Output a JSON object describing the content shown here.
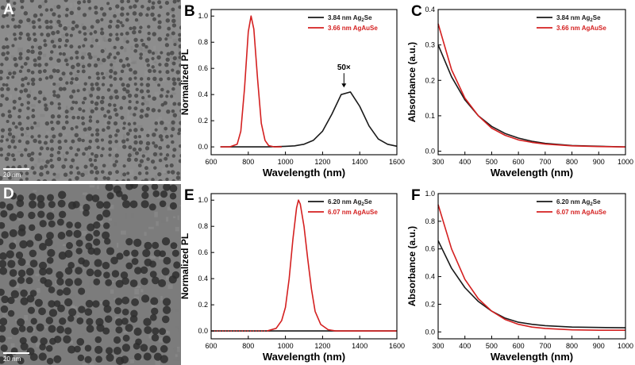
{
  "tem_panels": [
    {
      "letter": "A",
      "scale_label": "20 nm"
    },
    {
      "letter": "D",
      "scale_label": "20 nm"
    }
  ],
  "chart_data": [
    {
      "panel": "B",
      "type": "line",
      "xlabel": "Wavelength (nm)",
      "ylabel": "Normalized PL",
      "xlim": [
        600,
        1600
      ],
      "ylim": [
        -0.06,
        1.05
      ],
      "xticks": [
        600,
        800,
        1000,
        1200,
        1400,
        1600
      ],
      "yticks": [
        0.0,
        0.2,
        0.4,
        0.6,
        0.8,
        1.0
      ],
      "legend": [
        {
          "size": "3.84 nm",
          "material": "Ag",
          "sub": "2",
          "tail": "Se",
          "color": "#1a1a1a"
        },
        {
          "size": "3.66 nm",
          "material": "AgAuSe",
          "sub": "",
          "tail": "",
          "color": "#d42020"
        }
      ],
      "annotation": {
        "text": "50×",
        "x": 1315,
        "y": 0.43
      },
      "series": [
        {
          "color": "#1a1a1a",
          "dotted": false,
          "x": [
            650,
            700,
            750,
            800,
            850,
            900,
            950,
            1000,
            1050,
            1100,
            1150,
            1200,
            1250,
            1300,
            1350,
            1400,
            1450,
            1500,
            1550,
            1600
          ],
          "y": [
            0.0,
            0.0,
            0.0,
            0.0,
            0.0,
            0.0,
            0.002,
            0.004,
            0.008,
            0.02,
            0.05,
            0.12,
            0.25,
            0.4,
            0.42,
            0.31,
            0.16,
            0.06,
            0.02,
            0.005
          ]
        },
        {
          "color": "#d42020",
          "dotted": false,
          "x": [
            650,
            700,
            740,
            760,
            780,
            800,
            815,
            830,
            850,
            870,
            890,
            910,
            940,
            980
          ],
          "y": [
            0.0,
            0.0,
            0.02,
            0.12,
            0.45,
            0.88,
            1.0,
            0.9,
            0.52,
            0.18,
            0.05,
            0.01,
            0.0,
            0.0
          ]
        }
      ]
    },
    {
      "panel": "C",
      "type": "line",
      "xlabel": "Wavelength (nm)",
      "ylabel": "Absorbance (a.u.)",
      "xlim": [
        300,
        1000
      ],
      "ylim": [
        -0.01,
        0.4
      ],
      "xticks": [
        300,
        400,
        500,
        600,
        700,
        800,
        900,
        1000
      ],
      "yticks": [
        0.0,
        0.1,
        0.2,
        0.3,
        0.4
      ],
      "legend": [
        {
          "size": "3.84 nm",
          "material": "Ag",
          "sub": "2",
          "tail": "Se",
          "color": "#1a1a1a"
        },
        {
          "size": "3.66 nm",
          "material": "AgAuSe",
          "sub": "",
          "tail": "",
          "color": "#d42020"
        }
      ],
      "series": [
        {
          "color": "#1a1a1a",
          "dotted": false,
          "x": [
            300,
            350,
            400,
            450,
            500,
            550,
            600,
            650,
            700,
            800,
            900,
            1000
          ],
          "y": [
            0.3,
            0.21,
            0.145,
            0.1,
            0.07,
            0.05,
            0.037,
            0.028,
            0.022,
            0.016,
            0.014,
            0.012
          ]
        },
        {
          "color": "#d42020",
          "dotted": false,
          "x": [
            300,
            350,
            400,
            450,
            500,
            550,
            600,
            650,
            700,
            800,
            900,
            1000
          ],
          "y": [
            0.36,
            0.23,
            0.15,
            0.1,
            0.065,
            0.045,
            0.032,
            0.025,
            0.02,
            0.015,
            0.013,
            0.012
          ]
        }
      ]
    },
    {
      "panel": "E",
      "type": "line",
      "xlabel": "Wavelength (nm)",
      "ylabel": "Normalized PL",
      "xlim": [
        600,
        1600
      ],
      "ylim": [
        -0.06,
        1.05
      ],
      "xticks": [
        600,
        800,
        1000,
        1200,
        1400,
        1600
      ],
      "yticks": [
        0.0,
        0.2,
        0.4,
        0.6,
        0.8,
        1.0
      ],
      "legend": [
        {
          "size": "6.20 nm",
          "material": "Ag",
          "sub": "2",
          "tail": "Se",
          "color": "#1a1a1a"
        },
        {
          "size": "6.07 nm",
          "material": "AgAuSe",
          "sub": "",
          "tail": "",
          "color": "#d42020"
        }
      ],
      "series": [
        {
          "color": "#1a1a1a",
          "dotted": false,
          "x": [
            600,
            1600
          ],
          "y": [
            0.0,
            0.0
          ]
        },
        {
          "color": "#d42020",
          "dotted": true,
          "x": [
            600,
            700,
            800,
            900
          ],
          "y": [
            0.0,
            0.0,
            0.0,
            0.0
          ]
        },
        {
          "color": "#d42020",
          "dotted": false,
          "x": [
            900,
            950,
            980,
            1000,
            1020,
            1040,
            1060,
            1070,
            1080,
            1100,
            1120,
            1140,
            1160,
            1190,
            1230,
            1270,
            1600
          ],
          "y": [
            0.0,
            0.02,
            0.08,
            0.18,
            0.4,
            0.7,
            0.94,
            1.0,
            0.97,
            0.8,
            0.55,
            0.32,
            0.15,
            0.05,
            0.01,
            0.0,
            0.0
          ]
        }
      ]
    },
    {
      "panel": "F",
      "type": "line",
      "xlabel": "Wavelength (nm)",
      "ylabel": "Absorbance (a.u.)",
      "xlim": [
        300,
        1000
      ],
      "ylim": [
        -0.05,
        1.0
      ],
      "xticks": [
        300,
        400,
        500,
        600,
        700,
        800,
        900,
        1000
      ],
      "yticks": [
        0.0,
        0.2,
        0.4,
        0.6,
        0.8,
        1.0
      ],
      "legend": [
        {
          "size": "6.20 nm",
          "material": "Ag",
          "sub": "2",
          "tail": "Se",
          "color": "#1a1a1a"
        },
        {
          "size": "6.07 nm",
          "material": "AgAuSe",
          "sub": "",
          "tail": "",
          "color": "#d42020"
        }
      ],
      "series": [
        {
          "color": "#1a1a1a",
          "dotted": false,
          "x": [
            300,
            350,
            400,
            450,
            500,
            550,
            600,
            650,
            700,
            800,
            900,
            1000
          ],
          "y": [
            0.66,
            0.46,
            0.32,
            0.22,
            0.15,
            0.1,
            0.07,
            0.055,
            0.045,
            0.035,
            0.032,
            0.03
          ]
        },
        {
          "color": "#d42020",
          "dotted": false,
          "x": [
            300,
            350,
            400,
            450,
            500,
            550,
            600,
            650,
            700,
            800,
            900,
            1000
          ],
          "y": [
            0.92,
            0.6,
            0.38,
            0.24,
            0.15,
            0.09,
            0.055,
            0.035,
            0.025,
            0.015,
            0.012,
            0.012
          ]
        }
      ]
    }
  ]
}
